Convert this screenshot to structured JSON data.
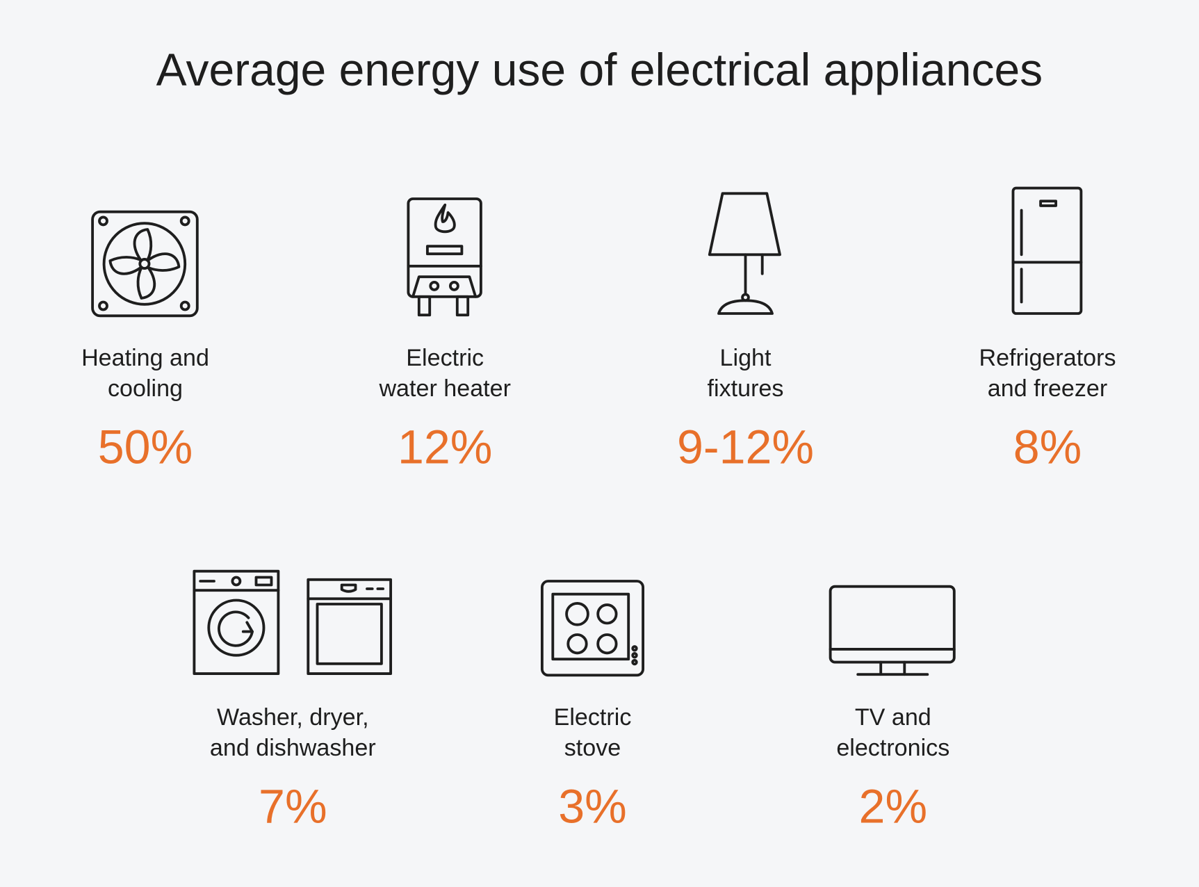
{
  "title": "Average energy use of electrical appliances",
  "items": [
    {
      "label": [
        "Heating and",
        "cooling"
      ],
      "value": "50%"
    },
    {
      "label": [
        "Electric",
        "water heater"
      ],
      "value": "12%"
    },
    {
      "label": [
        "Light",
        "fixtures"
      ],
      "value": "9-12%"
    },
    {
      "label": [
        "Refrigerators",
        "and freezer"
      ],
      "value": "8%"
    },
    {
      "label": [
        "Washer, dryer,",
        "and dishwasher"
      ],
      "value": "7%"
    },
    {
      "label": [
        "Electric",
        "stove"
      ],
      "value": "3%"
    },
    {
      "label": [
        "TV and",
        "electronics"
      ],
      "value": "2%"
    }
  ]
}
